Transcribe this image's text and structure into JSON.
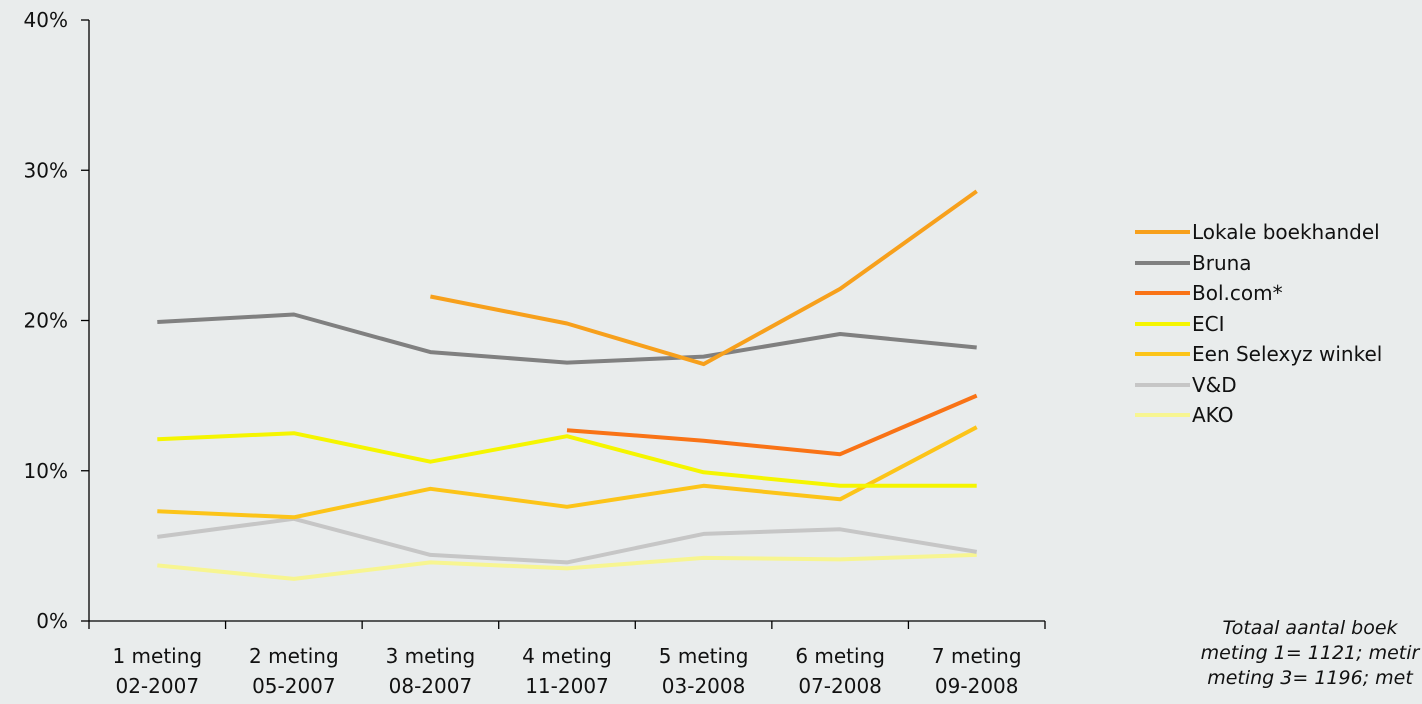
{
  "chart_data": {
    "type": "line",
    "categories": [
      {
        "line1": "1 meting",
        "line2": "02-2007"
      },
      {
        "line1": "2 meting",
        "line2": "05-2007"
      },
      {
        "line1": "3 meting",
        "line2": "08-2007"
      },
      {
        "line1": "4 meting",
        "line2": "11-2007"
      },
      {
        "line1": "5 meting",
        "line2": "03-2008"
      },
      {
        "line1": "6 meting",
        "line2": "07-2008"
      },
      {
        "line1": "7 meting",
        "line2": "09-2008"
      }
    ],
    "y_ticks": [
      "0%",
      "10%",
      "20%",
      "30%",
      "40%"
    ],
    "ylim": [
      0,
      40
    ],
    "series": [
      {
        "name": "Lokale boekhandel",
        "color": "#f7a01c",
        "values": [
          null,
          null,
          21.6,
          19.8,
          17.1,
          22.1,
          28.6
        ]
      },
      {
        "name": "Bruna",
        "color": "#808080",
        "values": [
          19.9,
          20.4,
          17.9,
          17.2,
          17.6,
          19.1,
          18.2
        ]
      },
      {
        "name": "Bol.com*",
        "color": "#f97316",
        "values": [
          null,
          null,
          null,
          12.7,
          12.0,
          11.1,
          15.0
        ]
      },
      {
        "name": "ECI",
        "color": "#f5f500",
        "values": [
          12.1,
          12.5,
          10.6,
          12.3,
          9.9,
          9.0,
          9.0
        ]
      },
      {
        "name": "Een Selexyz winkel",
        "color": "#fcc419",
        "values": [
          7.3,
          6.9,
          8.8,
          7.6,
          9.0,
          8.1,
          12.9
        ]
      },
      {
        "name": "V&D",
        "color": "#c6c6c6",
        "values": [
          5.6,
          6.8,
          4.4,
          3.9,
          5.8,
          6.1,
          4.6
        ]
      },
      {
        "name": "AKO",
        "color": "#f7f591",
        "values": [
          3.7,
          2.8,
          3.9,
          3.5,
          4.2,
          4.1,
          4.4
        ]
      }
    ],
    "grid": false,
    "legend_position": "right",
    "note": "Totaal aantal boek\nmeting 1= 1121; metir\nmeting 3= 1196; met"
  }
}
